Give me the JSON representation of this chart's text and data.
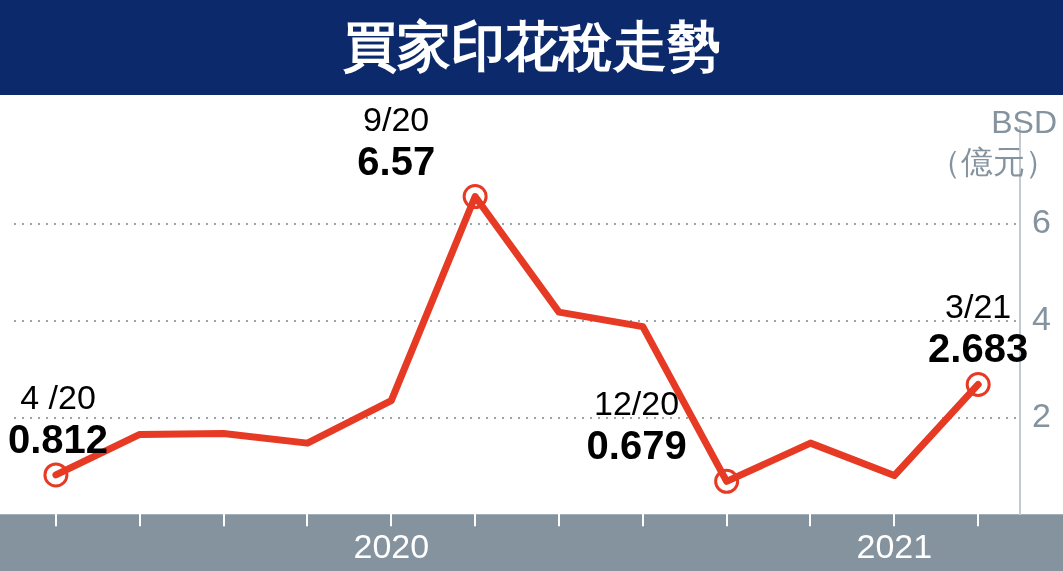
{
  "chart_data": {
    "type": "line",
    "title": "買家印花稅走勢",
    "ylabel": "BSD\n（億元）",
    "categories": [
      null,
      null,
      null,
      null,
      "2020",
      null,
      null,
      null,
      null,
      null,
      "2021",
      null
    ],
    "series": [
      {
        "color": "#e63a24",
        "marker": "none",
        "values": [
          0.812,
          1.65,
          1.67,
          1.47,
          2.35,
          6.57,
          4.18,
          3.88,
          0.679,
          1.47,
          0.8,
          2.683
        ]
      },
      {
        "type": "scatter",
        "color": "#e63a24",
        "marker": "circle",
        "values": [
          0.812,
          null,
          null,
          null,
          null,
          6.57,
          null,
          null,
          0.679,
          null,
          null,
          2.683
        ],
        "value_labels": [
          "0.812",
          null,
          null,
          null,
          null,
          "6.57",
          null,
          null,
          "0.679",
          null,
          null,
          "2.683"
        ]
      }
    ],
    "annotations": [
      "4 /20",
      "9/20",
      "12/20",
      "3/21"
    ],
    "ylim": [
      0,
      8
    ],
    "yticks": [
      2,
      4,
      6
    ],
    "grid": "y",
    "line_style": "solid"
  }
}
